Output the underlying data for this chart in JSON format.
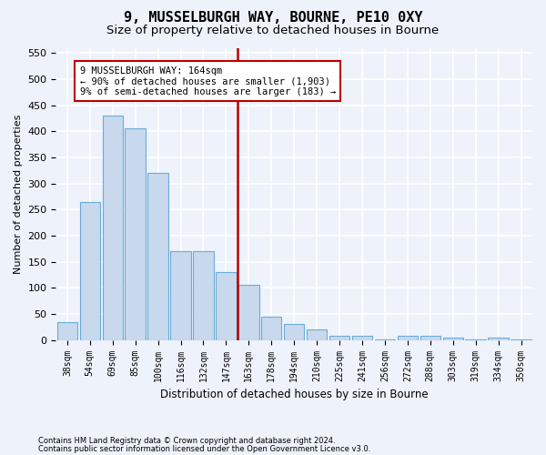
{
  "title": "9, MUSSELBURGH WAY, BOURNE, PE10 0XY",
  "subtitle": "Size of property relative to detached houses in Bourne",
  "xlabel": "Distribution of detached houses by size in Bourne",
  "ylabel": "Number of detached properties",
  "categories": [
    "38sqm",
    "54sqm",
    "69sqm",
    "85sqm",
    "100sqm",
    "116sqm",
    "132sqm",
    "147sqm",
    "163sqm",
    "178sqm",
    "194sqm",
    "210sqm",
    "225sqm",
    "241sqm",
    "256sqm",
    "272sqm",
    "288sqm",
    "303sqm",
    "319sqm",
    "334sqm",
    "350sqm"
  ],
  "values": [
    35,
    265,
    430,
    405,
    320,
    170,
    170,
    130,
    105,
    45,
    30,
    20,
    8,
    8,
    2,
    8,
    8,
    4,
    2,
    4,
    2
  ],
  "bar_color": "#c8d8ed",
  "bar_edge_color": "#6aaed6",
  "vline_color": "#bb0000",
  "vline_index": 8,
  "annotation_line1": "9 MUSSELBURGH WAY: 164sqm",
  "annotation_line2": "← 90% of detached houses are smaller (1,903)",
  "annotation_line3": "9% of semi-detached houses are larger (183) →",
  "annotation_box_edge_color": "#bb0000",
  "footnote1": "Contains HM Land Registry data © Crown copyright and database right 2024.",
  "footnote2": "Contains public sector information licensed under the Open Government Licence v3.0.",
  "ylim_max": 560,
  "yticks": [
    0,
    50,
    100,
    150,
    200,
    250,
    300,
    350,
    400,
    450,
    500,
    550
  ],
  "bg_color": "#eef2fa",
  "grid_color": "#ffffff",
  "title_fontsize": 11,
  "subtitle_fontsize": 9.5,
  "xlabel_fontsize": 8.5,
  "ylabel_fontsize": 8
}
